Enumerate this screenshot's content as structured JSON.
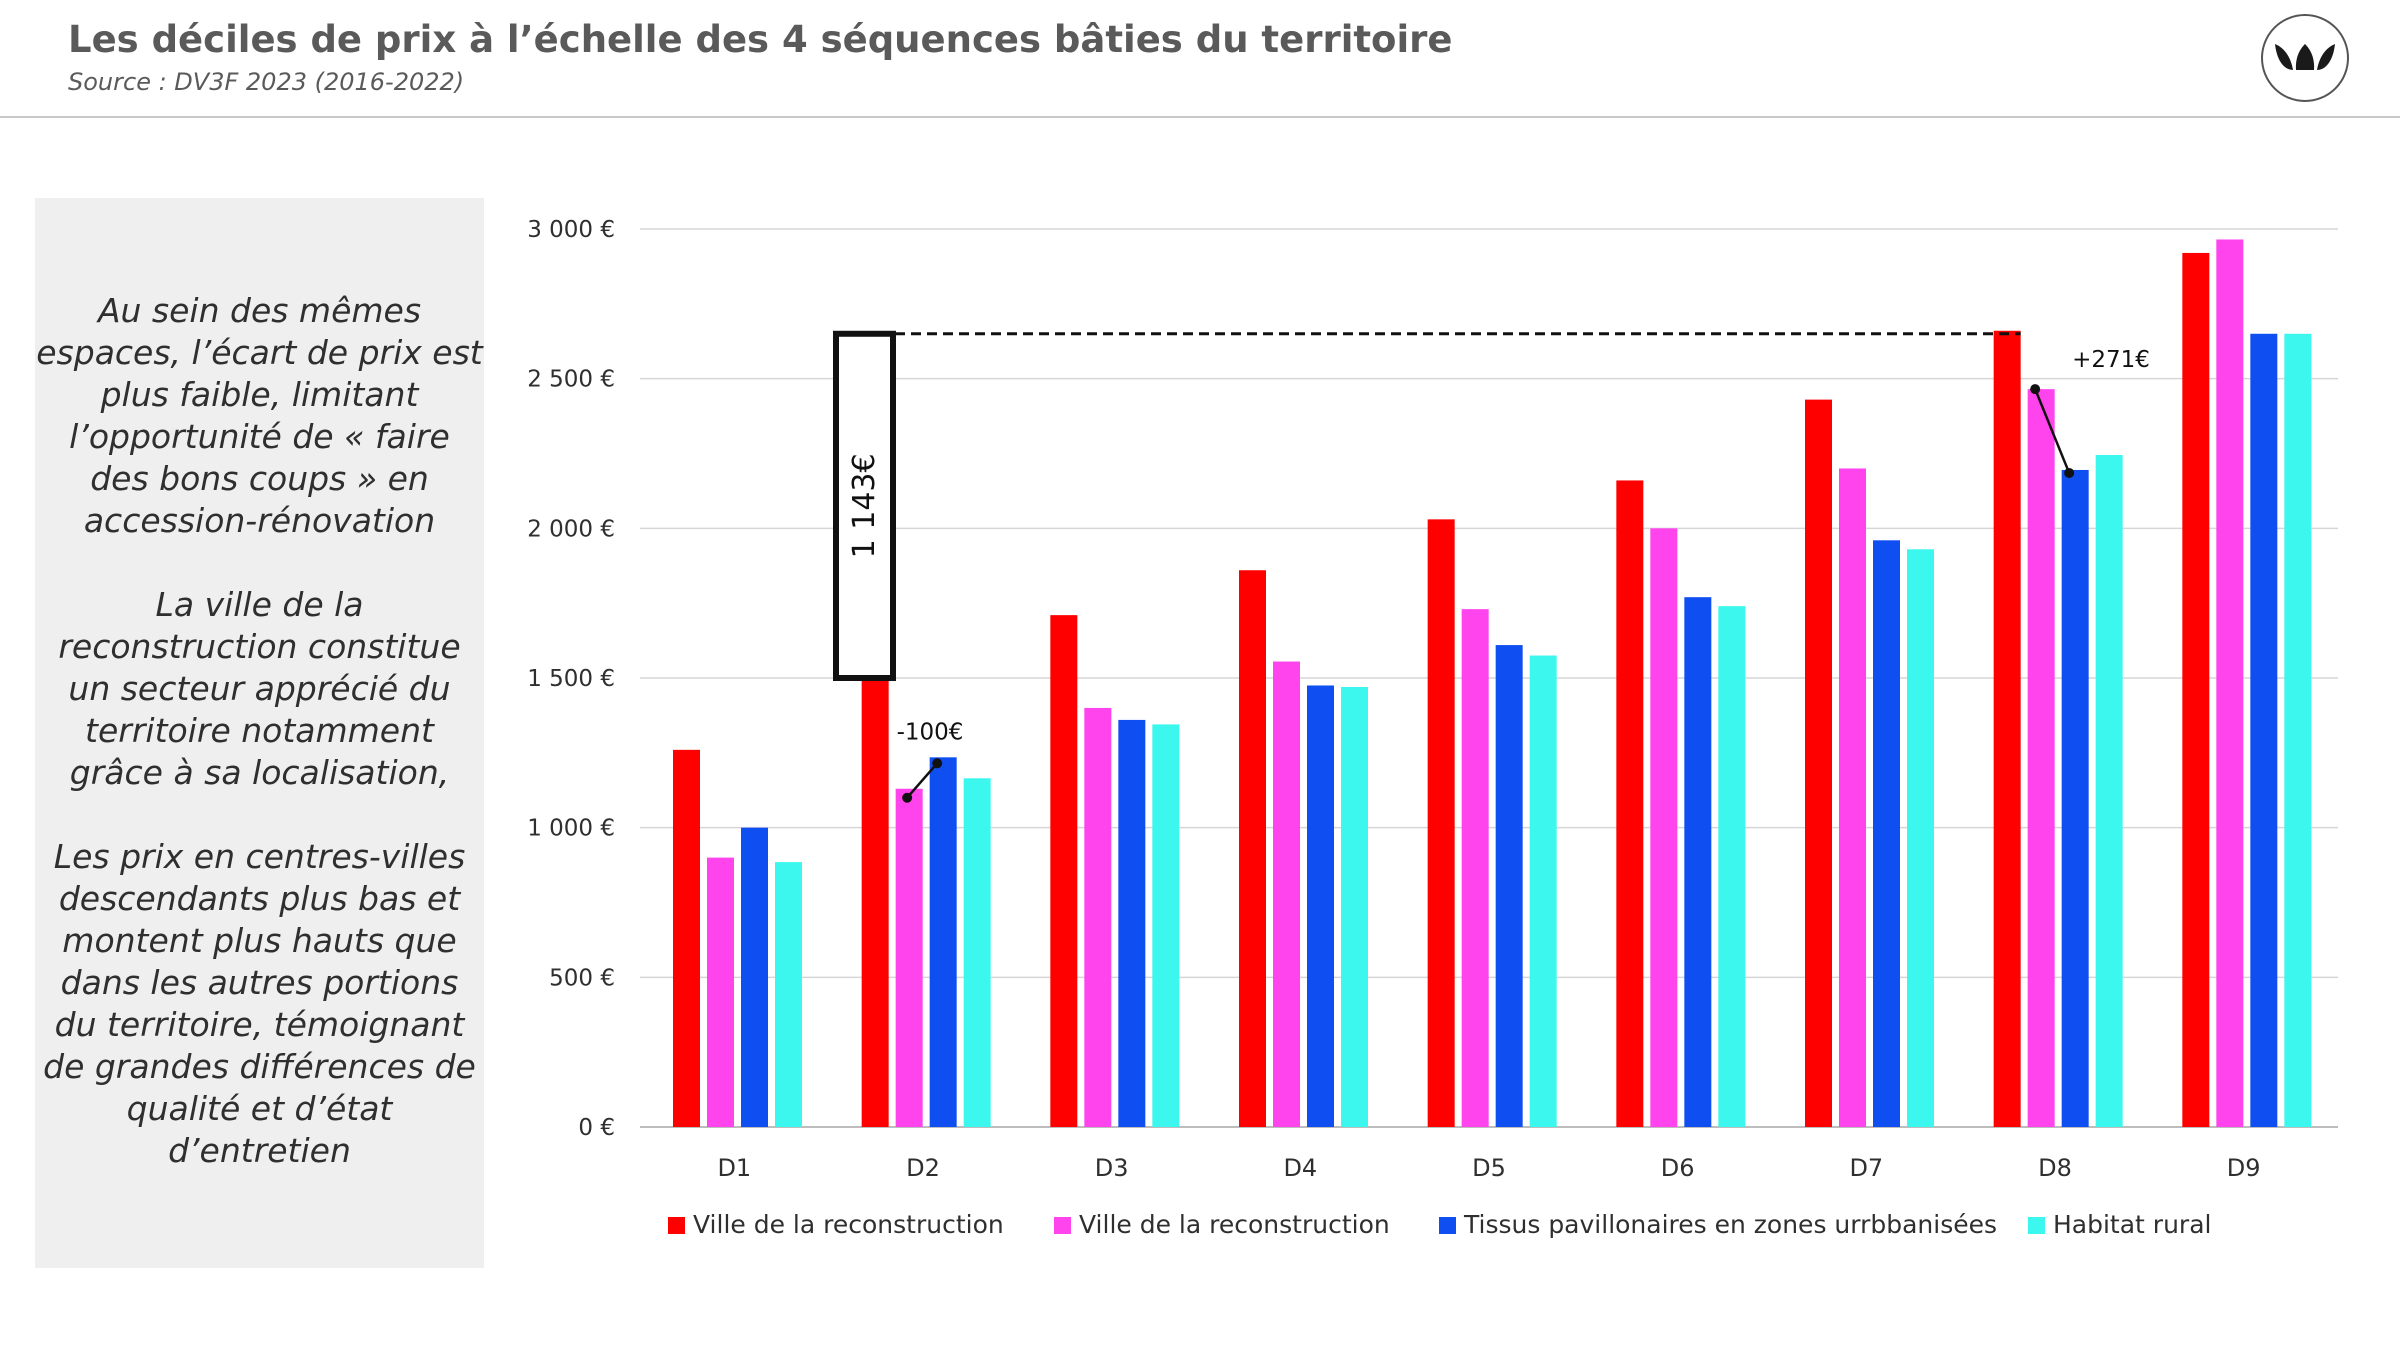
{
  "header": {
    "title": "Les déciles de prix à l’échelle des 4 séquences bâties du territoire",
    "source": "Source : DV3F 2023 (2016-2022)"
  },
  "logo": {
    "icon": "brand-leaf-logo-icon"
  },
  "sidebar": {
    "paragraphs": [
      "Au sein des mêmes espaces, l’écart de prix est plus faible, limitant l’opportunité de « faire des bons coups » en accession-rénovation",
      "La ville de la reconstruction constitue un secteur apprécié du territoire notamment grâce à sa localisation,",
      "Les prix en centres-villes descendants plus bas et montent plus hauts que dans les autres portions du territoire, témoignant de grandes différences de qualité et d’état d’entretien"
    ]
  },
  "chart_data": {
    "type": "bar",
    "categories": [
      "D1",
      "D2",
      "D3",
      "D4",
      "D5",
      "D6",
      "D7",
      "D8",
      "D9"
    ],
    "series": [
      {
        "name": "Ville de la reconstruction",
        "color": "#ff0000",
        "values": [
          1260,
          1505,
          1710,
          1860,
          2030,
          2160,
          2430,
          2660,
          2920
        ]
      },
      {
        "name": "Ville de la reconstruction",
        "color": "#ff44ee",
        "values": [
          900,
          1130,
          1400,
          1555,
          1730,
          2000,
          2200,
          2465,
          2965
        ]
      },
      {
        "name": "Tissus pavillonaires en zones urrbbanisées",
        "color": "#0f4ff2",
        "values": [
          1000,
          1235,
          1360,
          1475,
          1610,
          1770,
          1960,
          2195,
          2650
        ]
      },
      {
        "name": "Habitat rural",
        "color": "#3cf7ee",
        "values": [
          885,
          1165,
          1345,
          1470,
          1575,
          1740,
          1930,
          2245,
          2650
        ]
      }
    ],
    "ylim": [
      0,
      3000
    ],
    "yticks": [
      0,
      500,
      1000,
      1500,
      2000,
      2500,
      3000
    ],
    "ytick_labels": [
      "0 €",
      "500 €",
      "1 000 €",
      "1 500 €",
      "2 000 €",
      "2 500 €",
      "3 000 €"
    ],
    "grid": true,
    "legend_position": "bottom",
    "annotations": {
      "range_box": {
        "label": "1 143€",
        "from_value": 1500,
        "to_value": 2650
      },
      "dashed_line_value": 2650,
      "diff_d2": {
        "label": "-100€",
        "category": "D2",
        "from_value": 1100,
        "to_value": 1215
      },
      "diff_d8": {
        "label": "+271€",
        "category": "D8",
        "from_value": 2465,
        "to_value": 2185
      }
    }
  }
}
